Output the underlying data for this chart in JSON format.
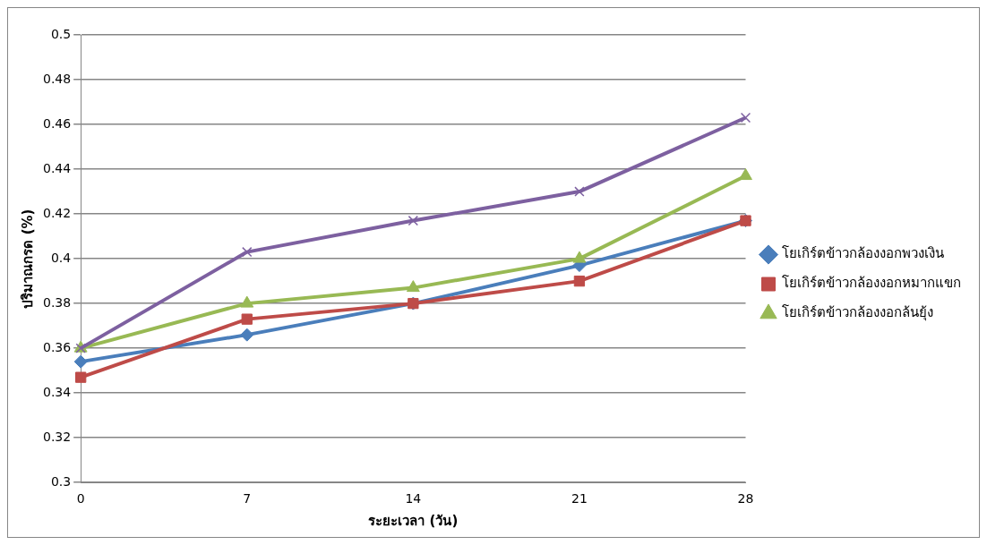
{
  "chart_data": {
    "type": "line",
    "xlabel": "ระยะเวลา (วัน)",
    "ylabel": "ปริมาณกรด (%)",
    "categories": [
      "0",
      "7",
      "14",
      "21",
      "28"
    ],
    "series": [
      {
        "name": "โยเกิร์ตข้าวกล้องงอกพวงเงิน",
        "color": "#4a7ebb",
        "marker": "diamond",
        "values": [
          0.354,
          0.366,
          0.38,
          0.397,
          0.417
        ]
      },
      {
        "name": "โยเกิร์ตข้าวกล้องงอกหมากแขก",
        "color": "#be4b48",
        "marker": "square",
        "values": [
          0.347,
          0.373,
          0.38,
          0.39,
          0.417
        ]
      },
      {
        "name": "โยเกิร์ตข้าวกล้องงอกล้นยุ้ง",
        "color": "#98b954",
        "marker": "triangle",
        "values": [
          0.36,
          0.38,
          0.387,
          0.4,
          0.437
        ]
      },
      {
        "color": "#7d60a0",
        "marker": "cross",
        "values": [
          0.36,
          0.403,
          0.417,
          0.43,
          0.463
        ]
      }
    ],
    "ylim": [
      0.3,
      0.5
    ],
    "yticks": [
      0.3,
      0.32,
      0.34,
      0.36,
      0.38,
      0.4,
      0.42,
      0.44,
      0.46,
      0.48,
      0.5
    ],
    "grid": "y",
    "legend": "right"
  }
}
